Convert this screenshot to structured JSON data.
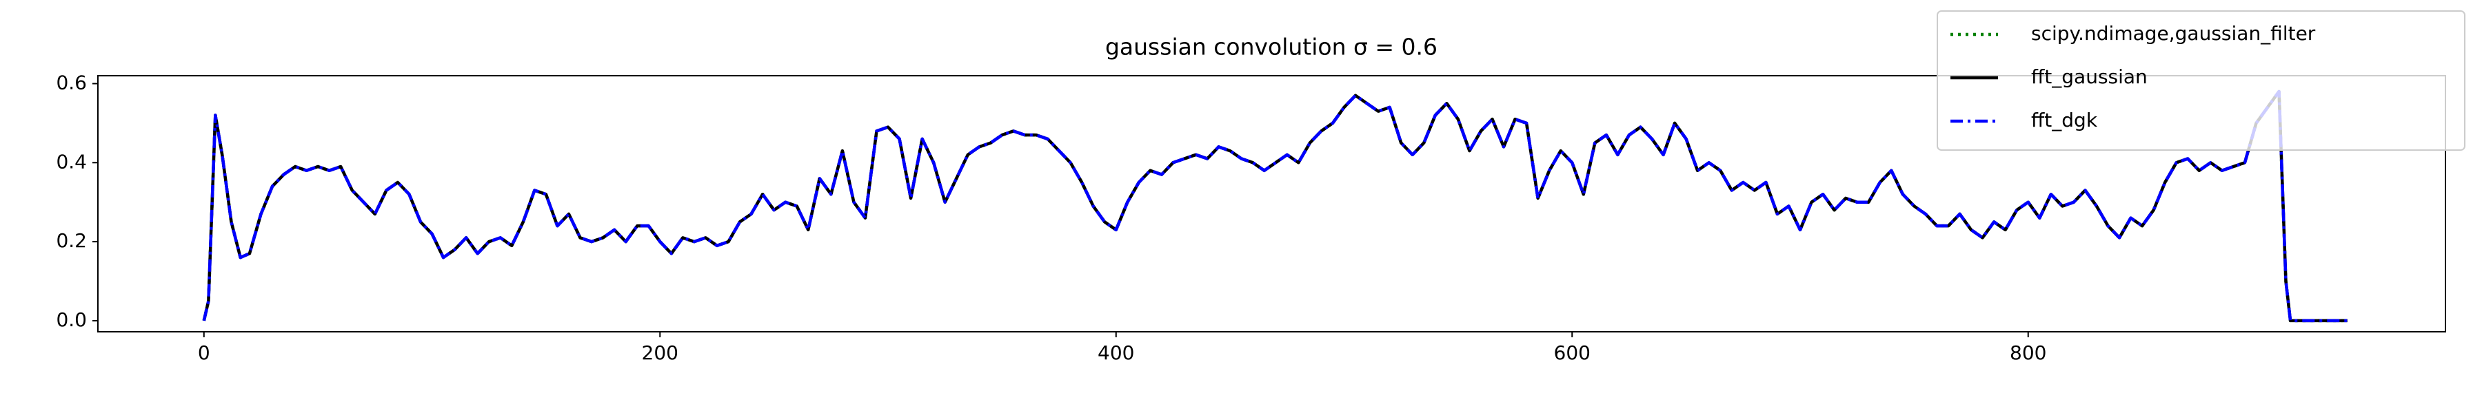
{
  "chart_data": {
    "type": "line",
    "title": "gaussian convolution σ = 0.6",
    "x": [
      0,
      2,
      5,
      8,
      12,
      16,
      20,
      25,
      30,
      35,
      40,
      45,
      50,
      55,
      60,
      65,
      70,
      75,
      80,
      85,
      90,
      95,
      100,
      105,
      110,
      115,
      120,
      125,
      130,
      135,
      140,
      145,
      150,
      155,
      160,
      165,
      170,
      175,
      180,
      185,
      190,
      195,
      200,
      205,
      210,
      215,
      220,
      225,
      230,
      235,
      240,
      245,
      250,
      255,
      260,
      265,
      270,
      275,
      280,
      285,
      290,
      295,
      300,
      305,
      310,
      315,
      320,
      325,
      330,
      335,
      340,
      345,
      350,
      355,
      360,
      365,
      370,
      375,
      380,
      385,
      390,
      395,
      400,
      405,
      410,
      415,
      420,
      425,
      430,
      435,
      440,
      445,
      450,
      455,
      460,
      465,
      470,
      475,
      480,
      485,
      490,
      495,
      500,
      505,
      510,
      515,
      520,
      525,
      530,
      535,
      540,
      545,
      550,
      555,
      560,
      565,
      570,
      575,
      580,
      585,
      590,
      595,
      600,
      605,
      610,
      615,
      620,
      625,
      630,
      635,
      640,
      645,
      650,
      655,
      660,
      665,
      670,
      675,
      680,
      685,
      690,
      695,
      700,
      705,
      710,
      715,
      720,
      725,
      730,
      735,
      740,
      745,
      750,
      755,
      760,
      765,
      770,
      775,
      780,
      785,
      790,
      795,
      800,
      805,
      810,
      815,
      820,
      825,
      830,
      835,
      840,
      845,
      850,
      855,
      860,
      865,
      870,
      875,
      880,
      885,
      890,
      895,
      900,
      905,
      910,
      913,
      915,
      940
    ],
    "series": [
      {
        "name": "scipy.ndimage,gaussian_filter",
        "color": "#008000",
        "dash": "dotted",
        "values": [
          0,
          0.05,
          0.52,
          0.42,
          0.25,
          0.16,
          0.17,
          0.27,
          0.34,
          0.37,
          0.39,
          0.38,
          0.39,
          0.38,
          0.39,
          0.33,
          0.3,
          0.27,
          0.33,
          0.35,
          0.32,
          0.25,
          0.22,
          0.16,
          0.18,
          0.21,
          0.17,
          0.2,
          0.21,
          0.19,
          0.25,
          0.33,
          0.32,
          0.24,
          0.27,
          0.21,
          0.2,
          0.21,
          0.23,
          0.2,
          0.24,
          0.24,
          0.2,
          0.17,
          0.21,
          0.2,
          0.21,
          0.19,
          0.2,
          0.25,
          0.27,
          0.32,
          0.28,
          0.3,
          0.29,
          0.23,
          0.36,
          0.32,
          0.43,
          0.3,
          0.26,
          0.48,
          0.49,
          0.46,
          0.31,
          0.46,
          0.4,
          0.3,
          0.36,
          0.42,
          0.44,
          0.45,
          0.47,
          0.48,
          0.47,
          0.47,
          0.46,
          0.43,
          0.4,
          0.35,
          0.29,
          0.25,
          0.23,
          0.3,
          0.35,
          0.38,
          0.37,
          0.4,
          0.41,
          0.42,
          0.41,
          0.44,
          0.43,
          0.41,
          0.4,
          0.38,
          0.4,
          0.42,
          0.4,
          0.45,
          0.48,
          0.5,
          0.54,
          0.57,
          0.55,
          0.53,
          0.54,
          0.45,
          0.42,
          0.45,
          0.52,
          0.55,
          0.51,
          0.43,
          0.48,
          0.51,
          0.44,
          0.51,
          0.5,
          0.31,
          0.38,
          0.43,
          0.4,
          0.32,
          0.45,
          0.47,
          0.42,
          0.47,
          0.49,
          0.46,
          0.42,
          0.5,
          0.46,
          0.38,
          0.4,
          0.38,
          0.33,
          0.35,
          0.33,
          0.35,
          0.27,
          0.29,
          0.23,
          0.3,
          0.32,
          0.28,
          0.31,
          0.3,
          0.3,
          0.35,
          0.38,
          0.32,
          0.29,
          0.27,
          0.24,
          0.24,
          0.27,
          0.23,
          0.21,
          0.25,
          0.23,
          0.28,
          0.3,
          0.26,
          0.32,
          0.29,
          0.3,
          0.33,
          0.29,
          0.24,
          0.21,
          0.26,
          0.24,
          0.28,
          0.35,
          0.4,
          0.41,
          0.38,
          0.4,
          0.38,
          0.39,
          0.4,
          0.5,
          0.54,
          0.58,
          0.1,
          0,
          0
        ]
      },
      {
        "name": "fft_gaussian",
        "color": "#000000",
        "dash": "solid",
        "values": [
          0,
          0.05,
          0.52,
          0.42,
          0.25,
          0.16,
          0.17,
          0.27,
          0.34,
          0.37,
          0.39,
          0.38,
          0.39,
          0.38,
          0.39,
          0.33,
          0.3,
          0.27,
          0.33,
          0.35,
          0.32,
          0.25,
          0.22,
          0.16,
          0.18,
          0.21,
          0.17,
          0.2,
          0.21,
          0.19,
          0.25,
          0.33,
          0.32,
          0.24,
          0.27,
          0.21,
          0.2,
          0.21,
          0.23,
          0.2,
          0.24,
          0.24,
          0.2,
          0.17,
          0.21,
          0.2,
          0.21,
          0.19,
          0.2,
          0.25,
          0.27,
          0.32,
          0.28,
          0.3,
          0.29,
          0.23,
          0.36,
          0.32,
          0.43,
          0.3,
          0.26,
          0.48,
          0.49,
          0.46,
          0.31,
          0.46,
          0.4,
          0.3,
          0.36,
          0.42,
          0.44,
          0.45,
          0.47,
          0.48,
          0.47,
          0.47,
          0.46,
          0.43,
          0.4,
          0.35,
          0.29,
          0.25,
          0.23,
          0.3,
          0.35,
          0.38,
          0.37,
          0.4,
          0.41,
          0.42,
          0.41,
          0.44,
          0.43,
          0.41,
          0.4,
          0.38,
          0.4,
          0.42,
          0.4,
          0.45,
          0.48,
          0.5,
          0.54,
          0.57,
          0.55,
          0.53,
          0.54,
          0.45,
          0.42,
          0.45,
          0.52,
          0.55,
          0.51,
          0.43,
          0.48,
          0.51,
          0.44,
          0.51,
          0.5,
          0.31,
          0.38,
          0.43,
          0.4,
          0.32,
          0.45,
          0.47,
          0.42,
          0.47,
          0.49,
          0.46,
          0.42,
          0.5,
          0.46,
          0.38,
          0.4,
          0.38,
          0.33,
          0.35,
          0.33,
          0.35,
          0.27,
          0.29,
          0.23,
          0.3,
          0.32,
          0.28,
          0.31,
          0.3,
          0.3,
          0.35,
          0.38,
          0.32,
          0.29,
          0.27,
          0.24,
          0.24,
          0.27,
          0.23,
          0.21,
          0.25,
          0.23,
          0.28,
          0.3,
          0.26,
          0.32,
          0.29,
          0.3,
          0.33,
          0.29,
          0.24,
          0.21,
          0.26,
          0.24,
          0.28,
          0.35,
          0.4,
          0.41,
          0.38,
          0.4,
          0.38,
          0.39,
          0.4,
          0.5,
          0.54,
          0.58,
          0.1,
          0,
          0
        ]
      },
      {
        "name": "fft_dgk",
        "color": "#0000ff",
        "dash": "dashdot",
        "values": [
          0,
          0.05,
          0.52,
          0.42,
          0.25,
          0.16,
          0.17,
          0.27,
          0.34,
          0.37,
          0.39,
          0.38,
          0.39,
          0.38,
          0.39,
          0.33,
          0.3,
          0.27,
          0.33,
          0.35,
          0.32,
          0.25,
          0.22,
          0.16,
          0.18,
          0.21,
          0.17,
          0.2,
          0.21,
          0.19,
          0.25,
          0.33,
          0.32,
          0.24,
          0.27,
          0.21,
          0.2,
          0.21,
          0.23,
          0.2,
          0.24,
          0.24,
          0.2,
          0.17,
          0.21,
          0.2,
          0.21,
          0.19,
          0.2,
          0.25,
          0.27,
          0.32,
          0.28,
          0.3,
          0.29,
          0.23,
          0.36,
          0.32,
          0.43,
          0.3,
          0.26,
          0.48,
          0.49,
          0.46,
          0.31,
          0.46,
          0.4,
          0.3,
          0.36,
          0.42,
          0.44,
          0.45,
          0.47,
          0.48,
          0.47,
          0.47,
          0.46,
          0.43,
          0.4,
          0.35,
          0.29,
          0.25,
          0.23,
          0.3,
          0.35,
          0.38,
          0.37,
          0.4,
          0.41,
          0.42,
          0.41,
          0.44,
          0.43,
          0.41,
          0.4,
          0.38,
          0.4,
          0.42,
          0.4,
          0.45,
          0.48,
          0.5,
          0.54,
          0.57,
          0.55,
          0.53,
          0.54,
          0.45,
          0.42,
          0.45,
          0.52,
          0.55,
          0.51,
          0.43,
          0.48,
          0.51,
          0.44,
          0.51,
          0.5,
          0.31,
          0.38,
          0.43,
          0.4,
          0.32,
          0.45,
          0.47,
          0.42,
          0.47,
          0.49,
          0.46,
          0.42,
          0.5,
          0.46,
          0.38,
          0.4,
          0.38,
          0.33,
          0.35,
          0.33,
          0.35,
          0.27,
          0.29,
          0.23,
          0.3,
          0.32,
          0.28,
          0.31,
          0.3,
          0.3,
          0.35,
          0.38,
          0.32,
          0.29,
          0.27,
          0.24,
          0.24,
          0.27,
          0.23,
          0.21,
          0.25,
          0.23,
          0.28,
          0.3,
          0.26,
          0.32,
          0.29,
          0.3,
          0.33,
          0.29,
          0.24,
          0.21,
          0.26,
          0.24,
          0.28,
          0.35,
          0.4,
          0.41,
          0.38,
          0.4,
          0.38,
          0.39,
          0.4,
          0.5,
          0.54,
          0.58,
          0.1,
          0,
          0
        ]
      }
    ],
    "xlim": [
      -46.5,
      983
    ],
    "ylim": [
      -0.028,
      0.62
    ],
    "xticks": [
      0,
      200,
      400,
      600,
      800
    ],
    "yticks": [
      {
        "value": 0,
        "label": "0.0"
      },
      0.2,
      0.4,
      0.6
    ],
    "legend": "upper right"
  }
}
